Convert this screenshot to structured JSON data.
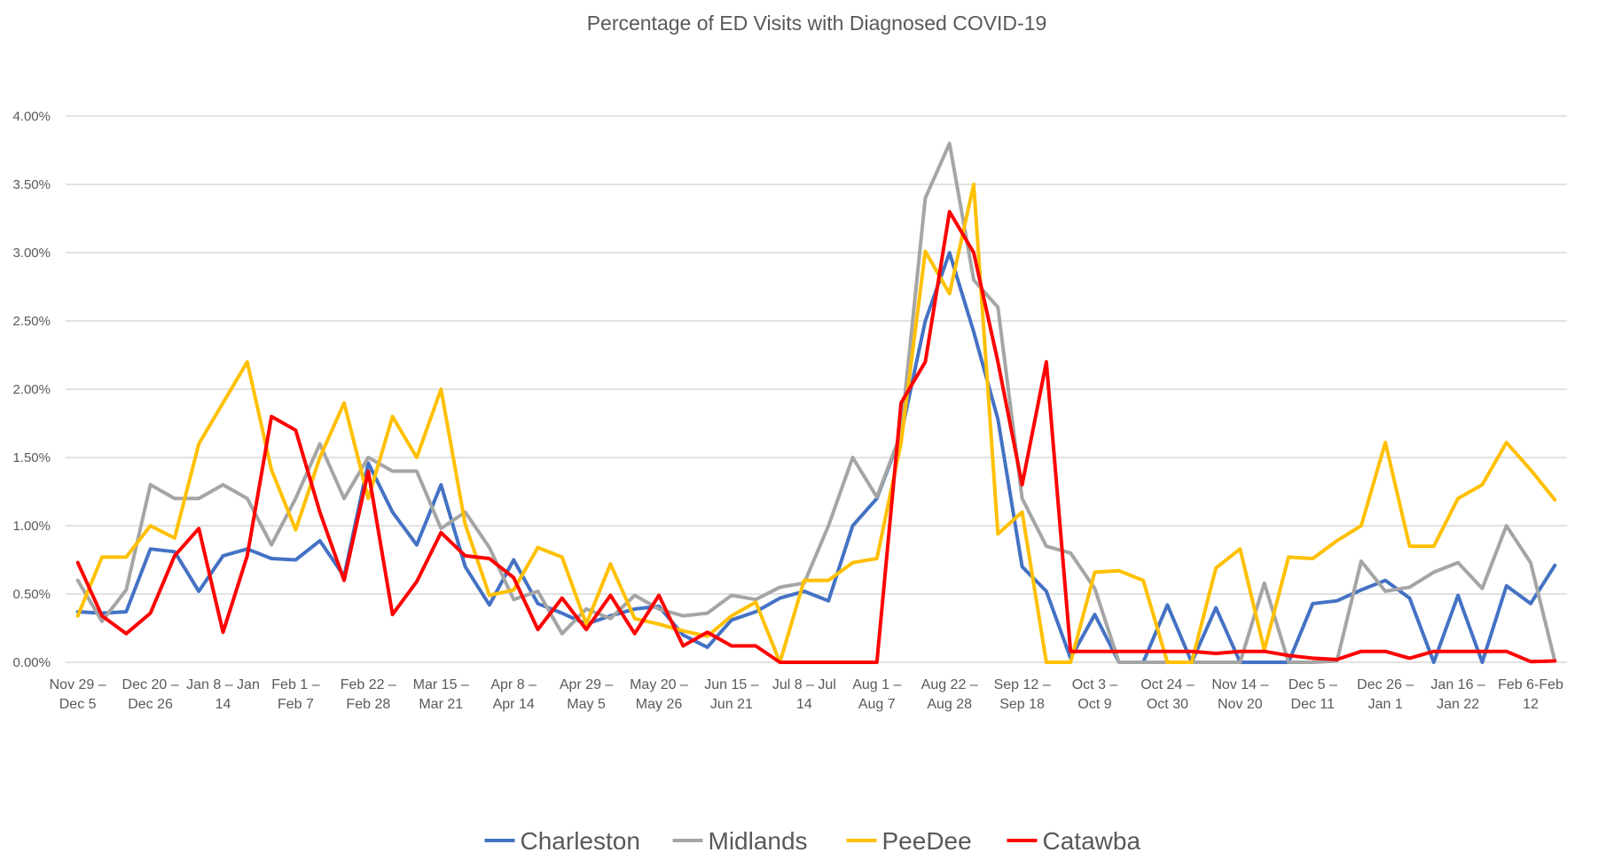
{
  "chart_data": {
    "type": "line",
    "title": "Percentage of ED Visits with Diagnosed COVID-19",
    "xlabel": "",
    "ylabel": "",
    "ylim": [
      0,
      4
    ],
    "y_unit": "%",
    "y_ticks": [
      "0.00%",
      "0.50%",
      "1.00%",
      "1.50%",
      "2.00%",
      "2.50%",
      "3.00%",
      "3.50%",
      "4.00%"
    ],
    "grid": true,
    "legend_position": "bottom",
    "x_label_interval": 3,
    "x_tick_labels": [
      [
        "Nov 29 –",
        "Dec 5"
      ],
      [
        "Dec 20 –",
        "Dec 26"
      ],
      [
        "Jan 8 – Jan",
        "14"
      ],
      [
        "Feb 1 –",
        "Feb 7"
      ],
      [
        "Feb 22 –",
        "Feb 28"
      ],
      [
        "Mar 15 –",
        "Mar 21"
      ],
      [
        "Apr 8 –",
        "Apr 14"
      ],
      [
        "Apr 29 –",
        "May 5"
      ],
      [
        "May 20 –",
        "May 26"
      ],
      [
        "Jun 15 –",
        "Jun 21"
      ],
      [
        "Jul 8 – Jul",
        "14"
      ],
      [
        "Aug 1 –",
        "Aug 7"
      ],
      [
        "Aug 22 –",
        "Aug 28"
      ],
      [
        "Sep 12 –",
        "Sep 18"
      ],
      [
        "Oct 3 –",
        "Oct 9"
      ],
      [
        "Oct 24 –",
        "Oct 30"
      ],
      [
        "Nov 14 –",
        "Nov 20"
      ],
      [
        "Dec 5 –",
        "Dec 11"
      ],
      [
        "Dec 26 –",
        "Jan 1"
      ],
      [
        "Jan 16 –",
        "Jan 22"
      ],
      [
        "Feb 6-Feb",
        "12"
      ]
    ],
    "series": [
      {
        "name": "Charleston",
        "color": "#4472C4",
        "values": [
          0.37,
          0.36,
          0.37,
          0.83,
          0.81,
          0.52,
          0.78,
          0.83,
          0.76,
          0.75,
          0.89,
          0.63,
          1.46,
          1.1,
          0.86,
          1.3,
          0.7,
          0.42,
          0.75,
          0.43,
          0.36,
          0.28,
          0.34,
          0.39,
          0.41,
          0.2,
          0.11,
          0.31,
          0.37,
          0.47,
          0.52,
          0.45,
          1.0,
          1.2,
          1.67,
          2.5,
          3.0,
          2.42,
          1.78,
          0.7,
          0.52,
          0.03,
          0.35,
          0,
          0,
          0.42,
          0,
          0.4,
          0,
          0,
          0,
          0.43,
          0.45,
          0.53,
          0.6,
          0.47,
          0,
          0.49,
          0,
          0.56,
          0.43,
          0.71
        ]
      },
      {
        "name": "Midlands",
        "color": "#A5A5A5",
        "values": [
          0.6,
          0.3,
          0.53,
          1.3,
          1.2,
          1.2,
          1.3,
          1.2,
          0.86,
          1.2,
          1.6,
          1.2,
          1.5,
          1.4,
          1.4,
          0.98,
          1.1,
          0.84,
          0.46,
          0.52,
          0.21,
          0.39,
          0.32,
          0.49,
          0.39,
          0.34,
          0.36,
          0.49,
          0.46,
          0.55,
          0.58,
          1.0,
          1.5,
          1.21,
          1.68,
          3.4,
          3.8,
          2.8,
          2.6,
          1.2,
          0.85,
          0.8,
          0.54,
          0,
          0,
          0,
          0,
          0,
          0,
          0.58,
          0,
          0,
          0.01,
          0.74,
          0.52,
          0.55,
          0.66,
          0.73,
          0.54,
          1.0,
          0.73,
          0.01
        ]
      },
      {
        "name": "PeeDee",
        "color": "#FFC000",
        "values": [
          0.34,
          0.77,
          0.77,
          1.0,
          0.91,
          1.6,
          1.9,
          2.2,
          1.41,
          0.97,
          1.5,
          1.9,
          1.2,
          1.8,
          1.5,
          2.0,
          1.01,
          0.49,
          0.53,
          0.84,
          0.77,
          0.28,
          0.72,
          0.32,
          0.28,
          0.23,
          0.19,
          0.34,
          0.44,
          0,
          0.6,
          0.6,
          0.73,
          0.76,
          1.61,
          3.01,
          2.7,
          3.5,
          0.94,
          1.1,
          0,
          0,
          0.66,
          0.67,
          0.6,
          0,
          0,
          0.69,
          0.83,
          0.09,
          0.77,
          0.76,
          0.89,
          1.0,
          1.61,
          0.85,
          0.85,
          1.2,
          1.3,
          1.61,
          1.41,
          1.19
        ]
      },
      {
        "name": "Catawba",
        "color": "#FF0000",
        "values": [
          0.73,
          0.34,
          0.21,
          0.36,
          0.78,
          0.98,
          0.22,
          0.78,
          1.8,
          1.7,
          1.1,
          0.6,
          1.4,
          0.35,
          0.59,
          0.95,
          0.78,
          0.76,
          0.62,
          0.24,
          0.47,
          0.24,
          0.49,
          0.21,
          0.49,
          0.12,
          0.22,
          0.12,
          0.12,
          0,
          0,
          0,
          0,
          0,
          1.9,
          2.2,
          3.3,
          3.0,
          2.2,
          1.3,
          2.2,
          0.08,
          0.08,
          0.08,
          0.08,
          0.08,
          0.08,
          0.065,
          0.08,
          0.08,
          0.05,
          0.03,
          0.02,
          0.08,
          0.08,
          0.03,
          0.08,
          0.08,
          0.08,
          0.08,
          0.005,
          0.01
        ]
      }
    ]
  }
}
